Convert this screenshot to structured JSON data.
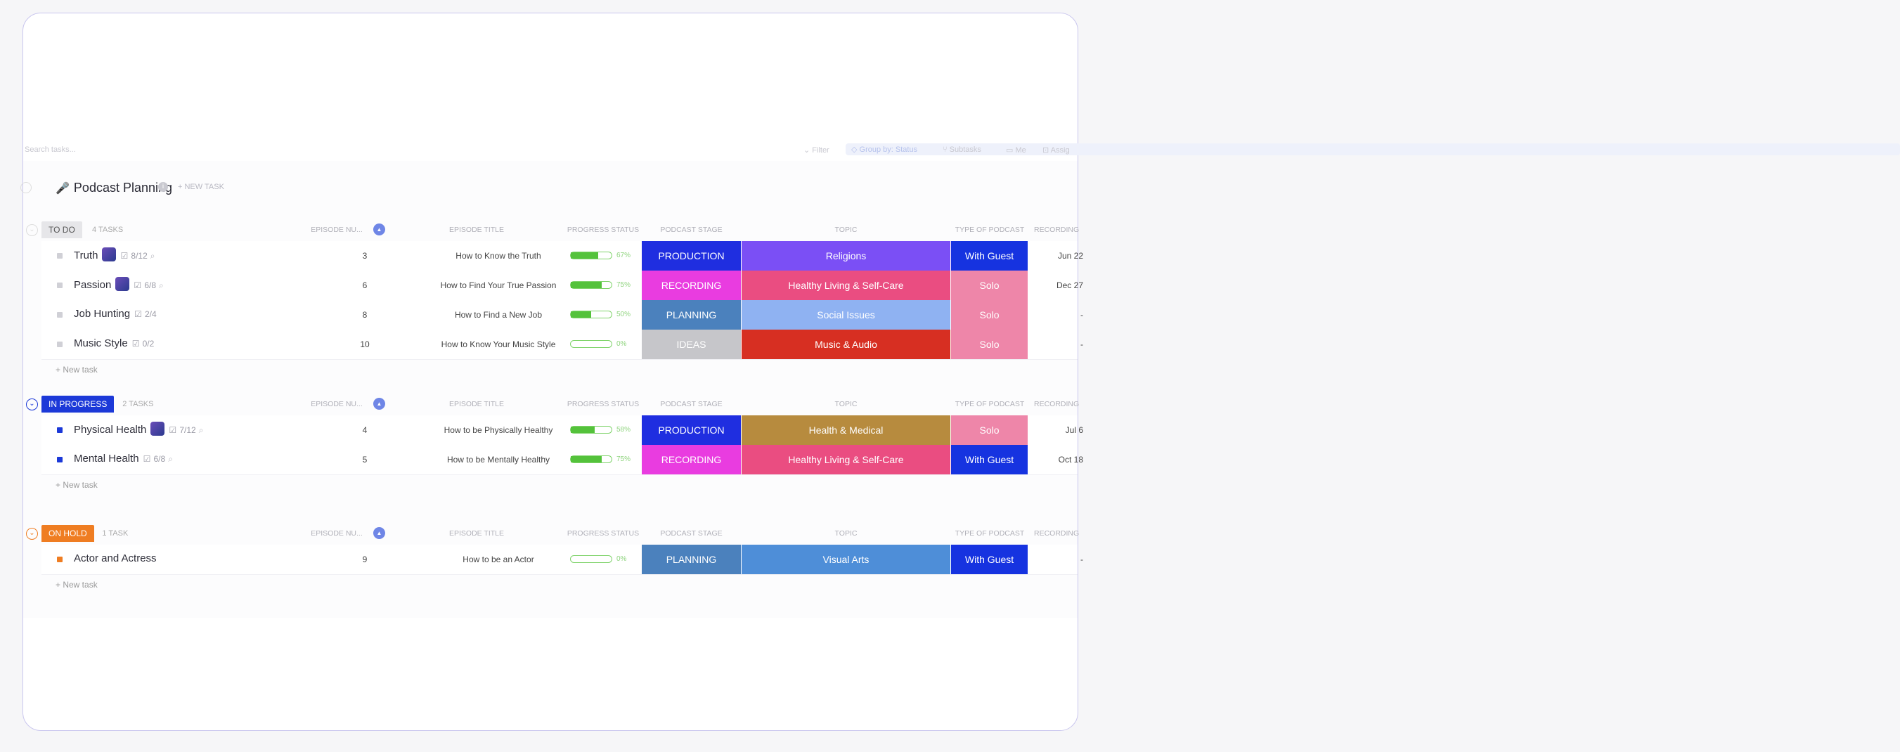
{
  "toolbar": {
    "search_placeholder": "Search tasks...",
    "filter_label": "Filter",
    "group_by_label": "Group by: Status",
    "subtasks_label": "Subtasks",
    "me_label": "Me",
    "assignees_label": "Assig"
  },
  "list": {
    "title": "Podcast Planning",
    "new_task_link": "+ NEW TASK"
  },
  "columns": {
    "episode_number": "EPISODE NU...",
    "episode_title": "EPISODE TITLE",
    "progress_status": "PROGRESS STATUS",
    "podcast_stage": "PODCAST STAGE",
    "topic": "TOPIC",
    "type_of_podcast": "TYPE OF PODCAST",
    "recording": "RECORDING"
  },
  "groups": [
    {
      "status": "TO DO",
      "count_label": "4 TASKS",
      "status_color": "#e6e6e9",
      "status_text_color": "#555555",
      "bullet_color": "#d0d0d6",
      "new_task_label": "+ New task",
      "tasks": [
        {
          "name": "Truth",
          "has_avatar": true,
          "subtasks": "8/12",
          "has_attachment": true,
          "episode": "3",
          "title": "How to Know the Truth",
          "progress": 67,
          "progress_label": "67%",
          "stage": "PRODUCTION",
          "stage_color": "#1f2ee0",
          "topic": "Religions",
          "topic_color": "#7b4ff5",
          "type": "With Guest",
          "type_color": "#1633e0",
          "date": "Jun 22"
        },
        {
          "name": "Passion",
          "has_avatar": true,
          "subtasks": "6/8",
          "has_attachment": true,
          "episode": "6",
          "title": "How to Find Your True Passion",
          "progress": 75,
          "progress_label": "75%",
          "stage": "RECORDING",
          "stage_color": "#e93ce0",
          "topic": "Healthy Living & Self-Care",
          "topic_color": "#ea4d81",
          "type": "Solo",
          "type_color": "#ee86a9",
          "date": "Dec 27"
        },
        {
          "name": "Job Hunting",
          "has_avatar": false,
          "subtasks": "2/4",
          "has_attachment": false,
          "episode": "8",
          "title": "How to Find a New Job",
          "progress": 50,
          "progress_label": "50%",
          "stage": "PLANNING",
          "stage_color": "#4b81bd",
          "topic": "Social Issues",
          "topic_color": "#8fb2f2",
          "type": "Solo",
          "type_color": "#ee86a9",
          "date": "-"
        },
        {
          "name": "Music Style",
          "has_avatar": false,
          "subtasks": "0/2",
          "has_attachment": false,
          "episode": "10",
          "title": "How to Know Your Music Style",
          "progress": 0,
          "progress_label": "0%",
          "stage": "IDEAS",
          "stage_color": "#c6c6ca",
          "topic": "Music & Audio",
          "topic_color": "#d72f22",
          "type": "Solo",
          "type_color": "#ee86a9",
          "date": "-"
        }
      ]
    },
    {
      "status": "IN PROGRESS",
      "count_label": "2 TASKS",
      "status_color": "#1c39d8",
      "status_text_color": "#ffffff",
      "bullet_color": "#1c39d8",
      "new_task_label": "+ New task",
      "tasks": [
        {
          "name": "Physical Health",
          "has_avatar": true,
          "subtasks": "7/12",
          "has_attachment": true,
          "episode": "4",
          "title": "How to be Physically Healthy",
          "progress": 58,
          "progress_label": "58%",
          "stage": "PRODUCTION",
          "stage_color": "#1f2ee0",
          "topic": "Health & Medical",
          "topic_color": "#b78b3e",
          "type": "Solo",
          "type_color": "#ee86a9",
          "date": "Jul 6"
        },
        {
          "name": "Mental Health",
          "has_avatar": false,
          "subtasks": "6/8",
          "has_attachment": true,
          "episode": "5",
          "title": "How to be Mentally Healthy",
          "progress": 75,
          "progress_label": "75%",
          "stage": "RECORDING",
          "stage_color": "#e93ce0",
          "topic": "Healthy Living & Self-Care",
          "topic_color": "#ea4d81",
          "type": "With Guest",
          "type_color": "#1633e0",
          "date": "Oct 18"
        }
      ]
    },
    {
      "status": "ON HOLD",
      "count_label": "1 TASK",
      "status_color": "#ef7d22",
      "status_text_color": "#ffffff",
      "bullet_color": "#ef7d22",
      "new_task_label": "+ New task",
      "tasks": [
        {
          "name": "Actor and Actress",
          "has_avatar": false,
          "subtasks": "",
          "has_attachment": false,
          "episode": "9",
          "title": "How to be an Actor",
          "progress": 0,
          "progress_label": "0%",
          "stage": "PLANNING",
          "stage_color": "#4b81bd",
          "topic": "Visual Arts",
          "topic_color": "#4e8ed8",
          "type": "With Guest",
          "type_color": "#1633e0",
          "date": "-"
        }
      ]
    }
  ]
}
